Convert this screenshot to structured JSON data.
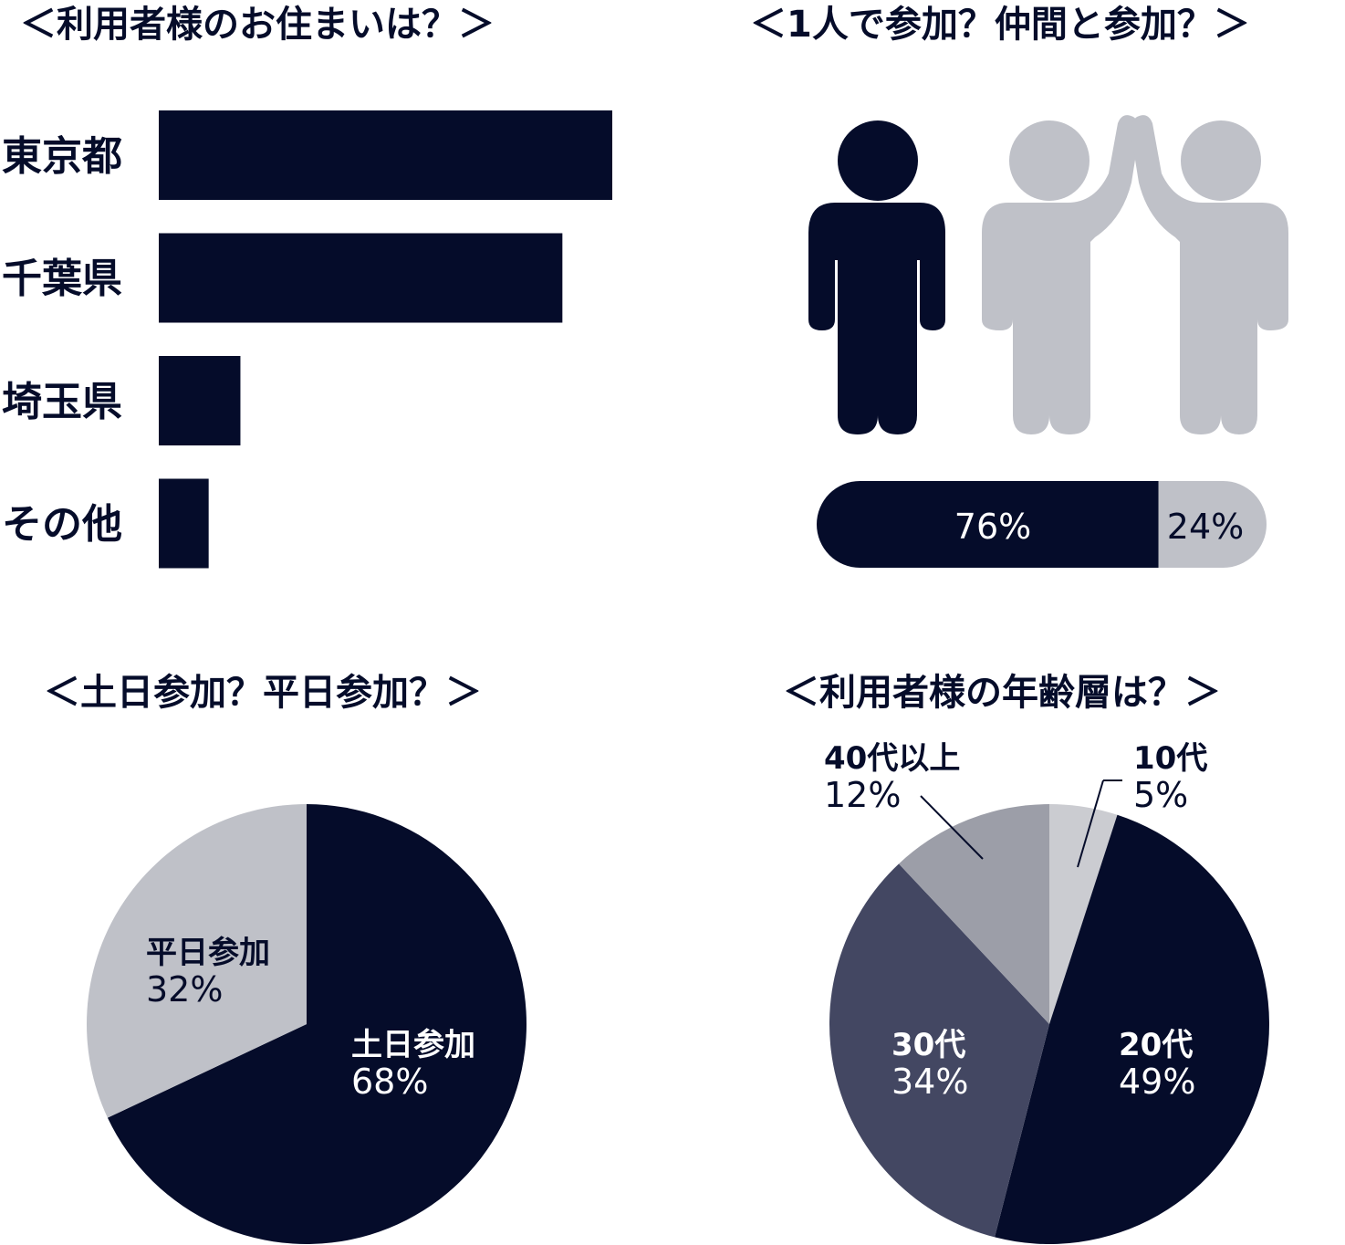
{
  "colors": {
    "dark": "#050c2a",
    "light_gray": "#bfc1c8",
    "mid_gray": "#9c9ea8",
    "slate": "#434762",
    "pale": "#cbccd1"
  },
  "chart_data": [
    {
      "type": "bar",
      "orientation": "horizontal",
      "title": "＜利用者様のお住まいは？＞",
      "categories": [
        "東京都",
        "千葉県",
        "埼玉県",
        "その他"
      ],
      "values": [
        100,
        89,
        18,
        11
      ],
      "value_note": "relative",
      "color": "#050c2a"
    },
    {
      "type": "bar",
      "orientation": "stacked-horizontal",
      "title": "＜1人で参加？仲間と参加？＞",
      "icons": [
        "single-person-icon",
        "two-people-high-five-icon"
      ],
      "series": [
        {
          "value": 76,
          "label": "76%",
          "color": "#050c2a"
        },
        {
          "value": 24,
          "label": "24%",
          "color": "#bfc1c8"
        }
      ]
    },
    {
      "type": "pie",
      "title": "＜土日参加？平日参加？＞",
      "slices": [
        {
          "name": "土日参加",
          "value": 68,
          "label": "68%",
          "color": "#050c2a"
        },
        {
          "name": "平日参加",
          "value": 32,
          "label": "32%",
          "color": "#bfc1c8"
        }
      ]
    },
    {
      "type": "pie",
      "title": "＜利用者様の年齢層は？＞",
      "slices": [
        {
          "name": "10代",
          "value": 5,
          "label": "5%",
          "color": "#cbccd1"
        },
        {
          "name": "20代",
          "value": 49,
          "label": "49%",
          "color": "#050c2a"
        },
        {
          "name": "30代",
          "value": 34,
          "label": "34%",
          "color": "#434762"
        },
        {
          "name": "40代以上",
          "value": 12,
          "label": "12%",
          "color": "#9c9ea8"
        }
      ]
    }
  ]
}
